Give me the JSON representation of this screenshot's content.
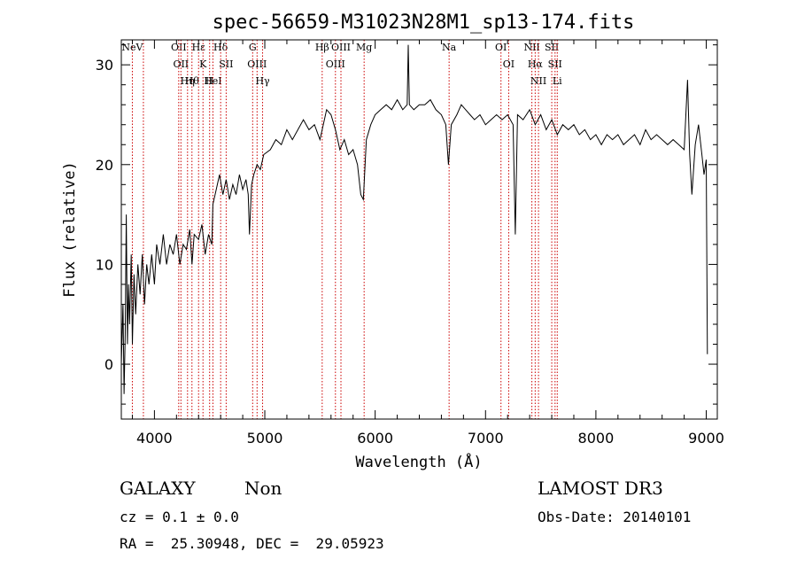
{
  "chart_data": {
    "type": "line",
    "title": "spec-56659-M31023N28M1_sp13-174.fits",
    "xlabel": "Wavelength (Å)",
    "ylabel": "Flux (relative)",
    "xlim": [
      3700,
      9100
    ],
    "ylim": [
      -5.5,
      32.5
    ],
    "x_ticks": [
      4000,
      5000,
      6000,
      7000,
      8000,
      9000
    ],
    "y_ticks": [
      0,
      10,
      20,
      30
    ],
    "grid": false,
    "line_color": "#000000",
    "marker_color": "#cc0000",
    "series": [
      {
        "values": [
          [
            3700,
            0.0
          ],
          [
            3715,
            6.0
          ],
          [
            3725,
            -3.0
          ],
          [
            3735,
            3.0
          ],
          [
            3745,
            15.0
          ],
          [
            3755,
            2.0
          ],
          [
            3765,
            8.0
          ],
          [
            3775,
            4.0
          ],
          [
            3790,
            11.0
          ],
          [
            3800,
            2.0
          ],
          [
            3815,
            9.0
          ],
          [
            3830,
            5.0
          ],
          [
            3850,
            10.0
          ],
          [
            3870,
            7.0
          ],
          [
            3890,
            11.0
          ],
          [
            3910,
            6.0
          ],
          [
            3930,
            10.0
          ],
          [
            3950,
            8.0
          ],
          [
            3975,
            11.0
          ],
          [
            4000,
            8.0
          ],
          [
            4020,
            12.0
          ],
          [
            4050,
            10.0
          ],
          [
            4080,
            13.0
          ],
          [
            4110,
            10.0
          ],
          [
            4140,
            12.0
          ],
          [
            4170,
            11.0
          ],
          [
            4200,
            13.0
          ],
          [
            4230,
            10.0
          ],
          [
            4260,
            12.0
          ],
          [
            4290,
            11.5
          ],
          [
            4320,
            13.5
          ],
          [
            4340,
            10.0
          ],
          [
            4360,
            13.0
          ],
          [
            4400,
            12.5
          ],
          [
            4430,
            14.0
          ],
          [
            4460,
            11.0
          ],
          [
            4490,
            13.0
          ],
          [
            4520,
            12.0
          ],
          [
            4530,
            16.0
          ],
          [
            4560,
            17.5
          ],
          [
            4590,
            19.0
          ],
          [
            4620,
            17.0
          ],
          [
            4650,
            18.5
          ],
          [
            4680,
            16.5
          ],
          [
            4710,
            18.0
          ],
          [
            4740,
            17.0
          ],
          [
            4770,
            19.0
          ],
          [
            4800,
            17.5
          ],
          [
            4830,
            18.5
          ],
          [
            4850,
            17.0
          ],
          [
            4861,
            13.0
          ],
          [
            4880,
            18.0
          ],
          [
            4900,
            19.0
          ],
          [
            4930,
            20.0
          ],
          [
            4960,
            19.5
          ],
          [
            4990,
            21.0
          ],
          [
            5050,
            21.5
          ],
          [
            5100,
            22.5
          ],
          [
            5150,
            22.0
          ],
          [
            5200,
            23.5
          ],
          [
            5250,
            22.5
          ],
          [
            5300,
            23.5
          ],
          [
            5350,
            24.5
          ],
          [
            5400,
            23.5
          ],
          [
            5450,
            24.0
          ],
          [
            5500,
            22.5
          ],
          [
            5530,
            24.0
          ],
          [
            5560,
            25.5
          ],
          [
            5600,
            25.0
          ],
          [
            5640,
            23.5
          ],
          [
            5680,
            21.5
          ],
          [
            5720,
            22.5
          ],
          [
            5760,
            21.0
          ],
          [
            5800,
            21.5
          ],
          [
            5840,
            20.0
          ],
          [
            5870,
            17.0
          ],
          [
            5893,
            16.5
          ],
          [
            5920,
            22.5
          ],
          [
            5960,
            24.0
          ],
          [
            6000,
            25.0
          ],
          [
            6050,
            25.5
          ],
          [
            6100,
            26.0
          ],
          [
            6150,
            25.5
          ],
          [
            6200,
            26.5
          ],
          [
            6250,
            25.5
          ],
          [
            6290,
            26.0
          ],
          [
            6300,
            32.0
          ],
          [
            6310,
            26.0
          ],
          [
            6350,
            25.5
          ],
          [
            6400,
            26.0
          ],
          [
            6450,
            26.0
          ],
          [
            6500,
            26.5
          ],
          [
            6550,
            25.5
          ],
          [
            6600,
            25.0
          ],
          [
            6640,
            24.0
          ],
          [
            6664,
            20.0
          ],
          [
            6690,
            24.0
          ],
          [
            6740,
            25.0
          ],
          [
            6780,
            26.0
          ],
          [
            6820,
            25.5
          ],
          [
            6860,
            25.0
          ],
          [
            6900,
            24.5
          ],
          [
            6950,
            25.0
          ],
          [
            7000,
            24.0
          ],
          [
            7050,
            24.5
          ],
          [
            7100,
            25.0
          ],
          [
            7150,
            24.5
          ],
          [
            7200,
            25.0
          ],
          [
            7250,
            24.0
          ],
          [
            7270,
            13.0
          ],
          [
            7290,
            25.0
          ],
          [
            7340,
            24.5
          ],
          [
            7400,
            25.5
          ],
          [
            7450,
            24.0
          ],
          [
            7500,
            25.0
          ],
          [
            7550,
            23.5
          ],
          [
            7600,
            24.5
          ],
          [
            7650,
            23.0
          ],
          [
            7700,
            24.0
          ],
          [
            7750,
            23.5
          ],
          [
            7800,
            24.0
          ],
          [
            7850,
            23.0
          ],
          [
            7900,
            23.5
          ],
          [
            7950,
            22.5
          ],
          [
            8000,
            23.0
          ],
          [
            8050,
            22.0
          ],
          [
            8100,
            23.0
          ],
          [
            8150,
            22.5
          ],
          [
            8200,
            23.0
          ],
          [
            8250,
            22.0
          ],
          [
            8300,
            22.5
          ],
          [
            8350,
            23.0
          ],
          [
            8400,
            22.0
          ],
          [
            8450,
            23.5
          ],
          [
            8500,
            22.5
          ],
          [
            8550,
            23.0
          ],
          [
            8600,
            22.5
          ],
          [
            8650,
            22.0
          ],
          [
            8700,
            22.5
          ],
          [
            8750,
            22.0
          ],
          [
            8800,
            21.5
          ],
          [
            8830,
            28.5
          ],
          [
            8850,
            21.0
          ],
          [
            8870,
            17.0
          ],
          [
            8900,
            22.0
          ],
          [
            8930,
            24.0
          ],
          [
            8960,
            21.0
          ],
          [
            8980,
            19.0
          ],
          [
            9000,
            20.5
          ],
          [
            9010,
            1.0
          ]
        ]
      }
    ],
    "line_markers": [
      {
        "x": 3800,
        "labels": [
          "NeV"
        ]
      },
      {
        "x": 3900,
        "labels": []
      },
      {
        "x": 4220,
        "labels": [
          "OII"
        ]
      },
      {
        "x": 4240,
        "labels": [
          "OII"
        ]
      },
      {
        "x": 4300,
        "labels": [
          "Hη"
        ]
      },
      {
        "x": 4340,
        "labels": [
          "Hθ"
        ]
      },
      {
        "x": 4400,
        "labels": [
          "Hε"
        ]
      },
      {
        "x": 4440,
        "labels": [
          "K"
        ]
      },
      {
        "x": 4500,
        "labels": [
          "H"
        ]
      },
      {
        "x": 4530,
        "labels": [
          "HeI"
        ]
      },
      {
        "x": 4600,
        "labels": [
          "Hδ"
        ]
      },
      {
        "x": 4650,
        "labels": [
          "SII"
        ]
      },
      {
        "x": 4890,
        "labels": [
          "G"
        ]
      },
      {
        "x": 4930,
        "labels": [
          "OIII"
        ]
      },
      {
        "x": 4980,
        "labels": [
          "Hγ"
        ]
      },
      {
        "x": 5520,
        "labels": [
          "Hβ"
        ]
      },
      {
        "x": 5640,
        "labels": [
          "OIII"
        ]
      },
      {
        "x": 5690,
        "labels": [
          "OIII"
        ]
      },
      {
        "x": 5900,
        "labels": [
          "Mg"
        ]
      },
      {
        "x": 6670,
        "labels": [
          "Na"
        ]
      },
      {
        "x": 7140,
        "labels": [
          "OI"
        ]
      },
      {
        "x": 7210,
        "labels": [
          "OI"
        ]
      },
      {
        "x": 7420,
        "labels": [
          "NII"
        ]
      },
      {
        "x": 7450,
        "labels": [
          "Hα"
        ]
      },
      {
        "x": 7480,
        "labels": [
          "NII"
        ]
      },
      {
        "x": 7600,
        "labels": [
          "SII"
        ]
      },
      {
        "x": 7630,
        "labels": [
          "SII"
        ]
      },
      {
        "x": 7650,
        "labels": [
          "Li"
        ]
      }
    ]
  },
  "info": {
    "object_class": "GALAXY",
    "subclass": "Non",
    "survey": "LAMOST DR3",
    "cz": "cz = 0.1 ± 0.0",
    "obs_date": "Obs-Date: 20140101",
    "coords": "RA =  25.30948, DEC =  29.05923"
  }
}
